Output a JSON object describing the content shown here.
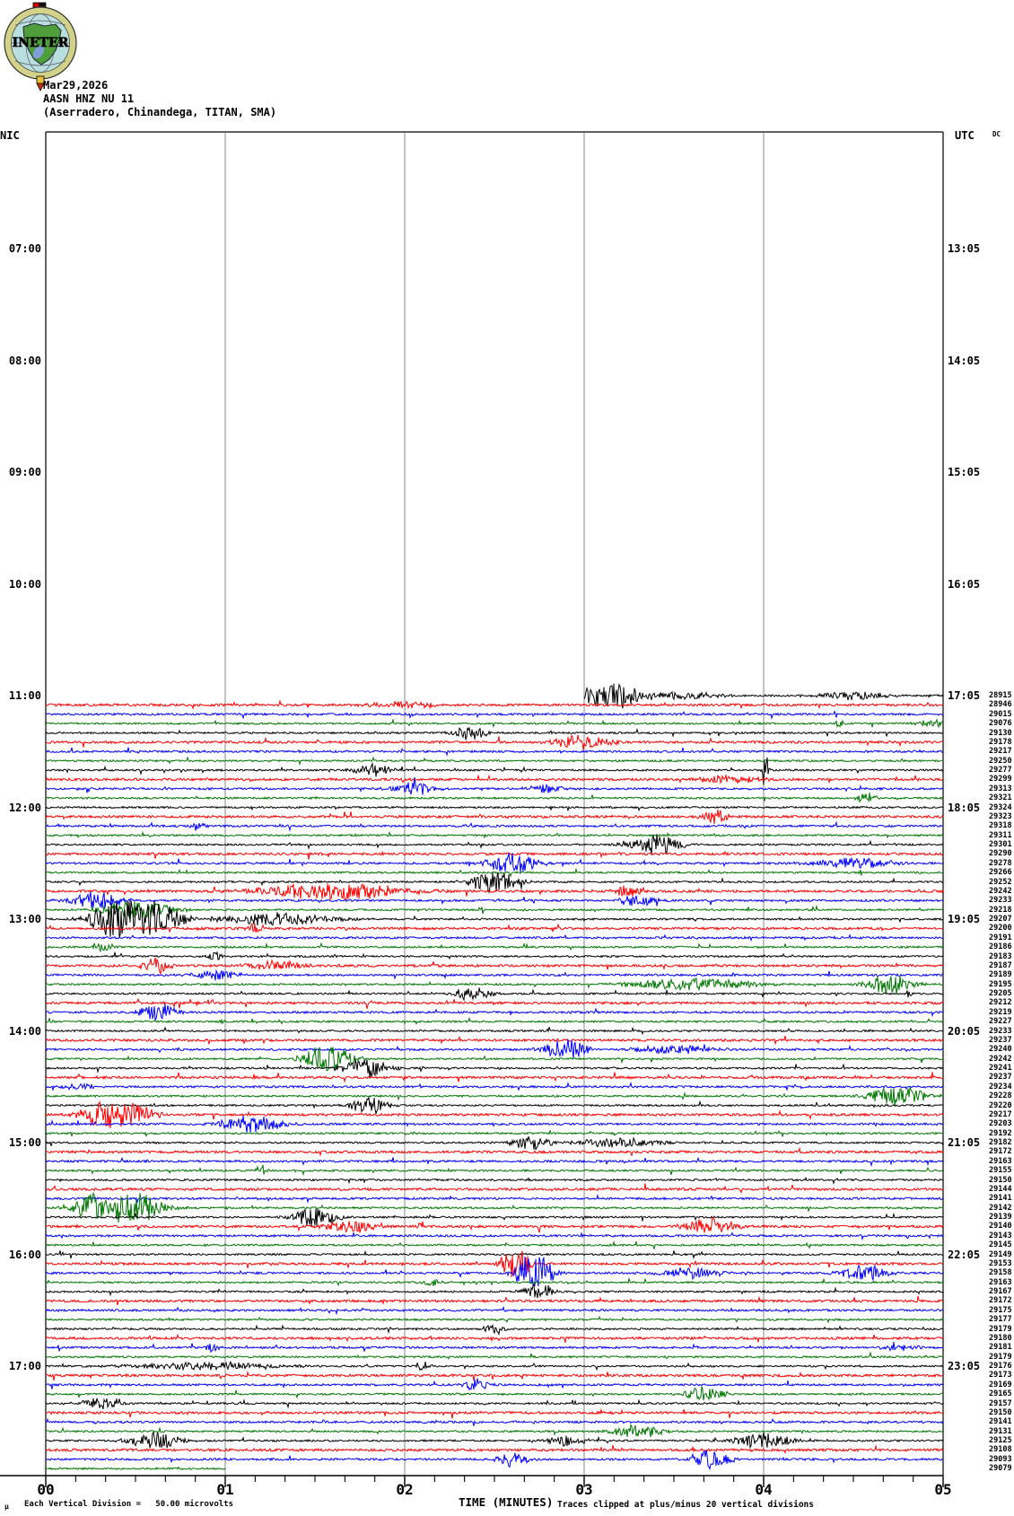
{
  "header": {
    "logo_text": "INETER",
    "date": "Mar29,2026",
    "station": "AASN HNZ NU 11",
    "station_info": "(Aserradero, Chinandega, TITAN, SMA)",
    "left_timezone": "NIC",
    "right_timezone": "UTC",
    "dc_column_label": "DC"
  },
  "footer": {
    "mu_mark": "μ",
    "scale_note": "Each Vertical Division =   50.00 microvolts",
    "clip_note": "Traces clipped at plus/minus 20 vertical divisions"
  },
  "chart_data": {
    "type": "line",
    "subtype": "helicorder-seismogram",
    "title": "AASN HNZ NU 11 helicorder record, Mar29,2026",
    "xlabel": "TIME (MINUTES)",
    "x_ticks": [
      "00",
      "01",
      "02",
      "03",
      "04",
      "05"
    ],
    "x_range_minutes": [
      0,
      5
    ],
    "minor_ticks_per_minute": 6,
    "rows_per_hour": 12,
    "minutes_per_row": 5,
    "grid": "vertical-only",
    "left_times": [
      "07:00",
      "08:00",
      "09:00",
      "10:00",
      "11:00",
      "12:00",
      "13:00",
      "14:00",
      "15:00",
      "16:00",
      "17:00"
    ],
    "right_times": [
      "13:05",
      "14:05",
      "15:05",
      "16:05",
      "17:05",
      "18:05",
      "19:05",
      "20:05",
      "21:05",
      "22:05",
      "23:05"
    ],
    "trace_color_cycle": [
      "black",
      "red",
      "blue",
      "green"
    ],
    "trace_colors": {
      "black": "#000000",
      "red": "#ff0000",
      "blue": "#0000ff",
      "green": "#007700"
    },
    "grid_color": "#8a8a8a",
    "first_trace_right_time": "17:05",
    "first_row_data_start_minute": 3,
    "last_row_data_end_minute": 1,
    "dc_values": [
      28915,
      28946,
      29015,
      29076,
      29130,
      29178,
      29217,
      29250,
      29277,
      29299,
      29313,
      29321,
      29324,
      29323,
      29318,
      29311,
      29301,
      29290,
      29278,
      29266,
      29252,
      29242,
      29233,
      29218,
      29207,
      29200,
      29191,
      29186,
      29183,
      29187,
      29189,
      29195,
      29205,
      29212,
      29219,
      29227,
      29233,
      29237,
      29240,
      29242,
      29241,
      29237,
      29234,
      29228,
      29220,
      29217,
      29203,
      29192,
      29182,
      29172,
      29163,
      29155,
      29150,
      29144,
      29141,
      29142,
      29139,
      29140,
      29143,
      29145,
      29149,
      29153,
      29158,
      29163,
      29167,
      29172,
      29175,
      29177,
      29179,
      29180,
      29181,
      29179,
      29176,
      29173,
      29169,
      29165,
      29157,
      29150,
      29141,
      29131,
      29125,
      29108,
      29093,
      29079
    ],
    "events": [
      [
        1,
        3.15,
        0.18,
        14
      ],
      [
        1,
        3.55,
        0.3,
        4
      ],
      [
        1,
        4.5,
        0.25,
        5
      ],
      [
        2,
        2.0,
        0.3,
        3
      ],
      [
        4,
        4.42,
        0.03,
        6
      ],
      [
        4,
        4.95,
        0.15,
        4
      ],
      [
        5,
        2.37,
        0.12,
        9
      ],
      [
        6,
        3.0,
        0.22,
        8
      ],
      [
        9,
        1.82,
        0.14,
        7
      ],
      [
        9,
        4.01,
        0.02,
        17
      ],
      [
        10,
        3.8,
        0.25,
        4
      ],
      [
        11,
        2.05,
        0.16,
        8
      ],
      [
        11,
        2.8,
        0.16,
        5
      ],
      [
        12,
        4.57,
        0.08,
        6
      ],
      [
        14,
        3.73,
        0.1,
        9
      ],
      [
        15,
        0.85,
        0.08,
        4
      ],
      [
        17,
        3.38,
        0.2,
        13
      ],
      [
        19,
        2.6,
        0.2,
        12
      ],
      [
        19,
        4.5,
        0.3,
        6
      ],
      [
        21,
        2.5,
        0.2,
        12
      ],
      [
        22,
        1.6,
        0.55,
        10
      ],
      [
        22,
        3.25,
        0.12,
        6
      ],
      [
        23,
        0.27,
        0.18,
        10
      ],
      [
        23,
        3.3,
        0.16,
        6
      ],
      [
        24,
        0.5,
        0.28,
        10
      ],
      [
        25,
        0.5,
        0.28,
        21
      ],
      [
        25,
        1.3,
        0.45,
        7
      ],
      [
        26,
        1.17,
        0.08,
        5
      ],
      [
        28,
        0.33,
        0.08,
        5
      ],
      [
        29,
        0.95,
        0.06,
        5
      ],
      [
        30,
        0.6,
        0.12,
        8
      ],
      [
        30,
        1.3,
        0.25,
        5
      ],
      [
        31,
        0.95,
        0.18,
        6
      ],
      [
        32,
        3.6,
        0.45,
        7
      ],
      [
        32,
        4.7,
        0.18,
        12
      ],
      [
        33,
        2.37,
        0.14,
        8
      ],
      [
        33,
        4.82,
        0.03,
        10
      ],
      [
        35,
        0.63,
        0.14,
        10
      ],
      [
        36,
        0.98,
        0.03,
        4
      ],
      [
        39,
        2.9,
        0.16,
        13
      ],
      [
        39,
        3.5,
        0.3,
        5
      ],
      [
        40,
        1.57,
        0.16,
        14
      ],
      [
        41,
        1.78,
        0.18,
        12
      ],
      [
        43,
        0.2,
        0.12,
        4
      ],
      [
        44,
        4.75,
        0.22,
        12
      ],
      [
        45,
        1.8,
        0.14,
        11
      ],
      [
        46,
        0.4,
        0.22,
        14
      ],
      [
        47,
        1.15,
        0.25,
        10
      ],
      [
        49,
        2.7,
        0.15,
        8
      ],
      [
        49,
        3.2,
        0.35,
        5
      ],
      [
        52,
        1.2,
        0.04,
        8
      ],
      [
        56,
        0.4,
        0.28,
        16
      ],
      [
        57,
        1.5,
        0.16,
        12
      ],
      [
        58,
        1.7,
        0.2,
        7
      ],
      [
        58,
        2.09,
        0.02,
        9
      ],
      [
        58,
        3.7,
        0.2,
        10
      ],
      [
        62,
        2.62,
        0.1,
        14
      ],
      [
        63,
        2.72,
        0.12,
        19
      ],
      [
        63,
        3.6,
        0.25,
        6
      ],
      [
        63,
        4.55,
        0.18,
        10
      ],
      [
        64,
        2.15,
        0.08,
        4
      ],
      [
        65,
        2.75,
        0.12,
        10
      ],
      [
        69,
        2.5,
        0.1,
        6
      ],
      [
        71,
        0.93,
        0.06,
        5
      ],
      [
        71,
        4.76,
        0.12,
        5
      ],
      [
        73,
        0.9,
        0.6,
        4
      ],
      [
        73,
        2.1,
        0.05,
        6
      ],
      [
        75,
        2.4,
        0.1,
        7
      ],
      [
        76,
        3.67,
        0.15,
        9
      ],
      [
        77,
        0.3,
        0.18,
        6
      ],
      [
        77,
        0.4,
        0.02,
        10
      ],
      [
        80,
        3.3,
        0.2,
        8
      ],
      [
        81,
        0.6,
        0.2,
        10
      ],
      [
        81,
        2.9,
        0.16,
        6
      ],
      [
        81,
        4.0,
        0.2,
        10
      ],
      [
        83,
        2.6,
        0.12,
        8
      ],
      [
        83,
        3.7,
        0.15,
        10
      ]
    ]
  }
}
